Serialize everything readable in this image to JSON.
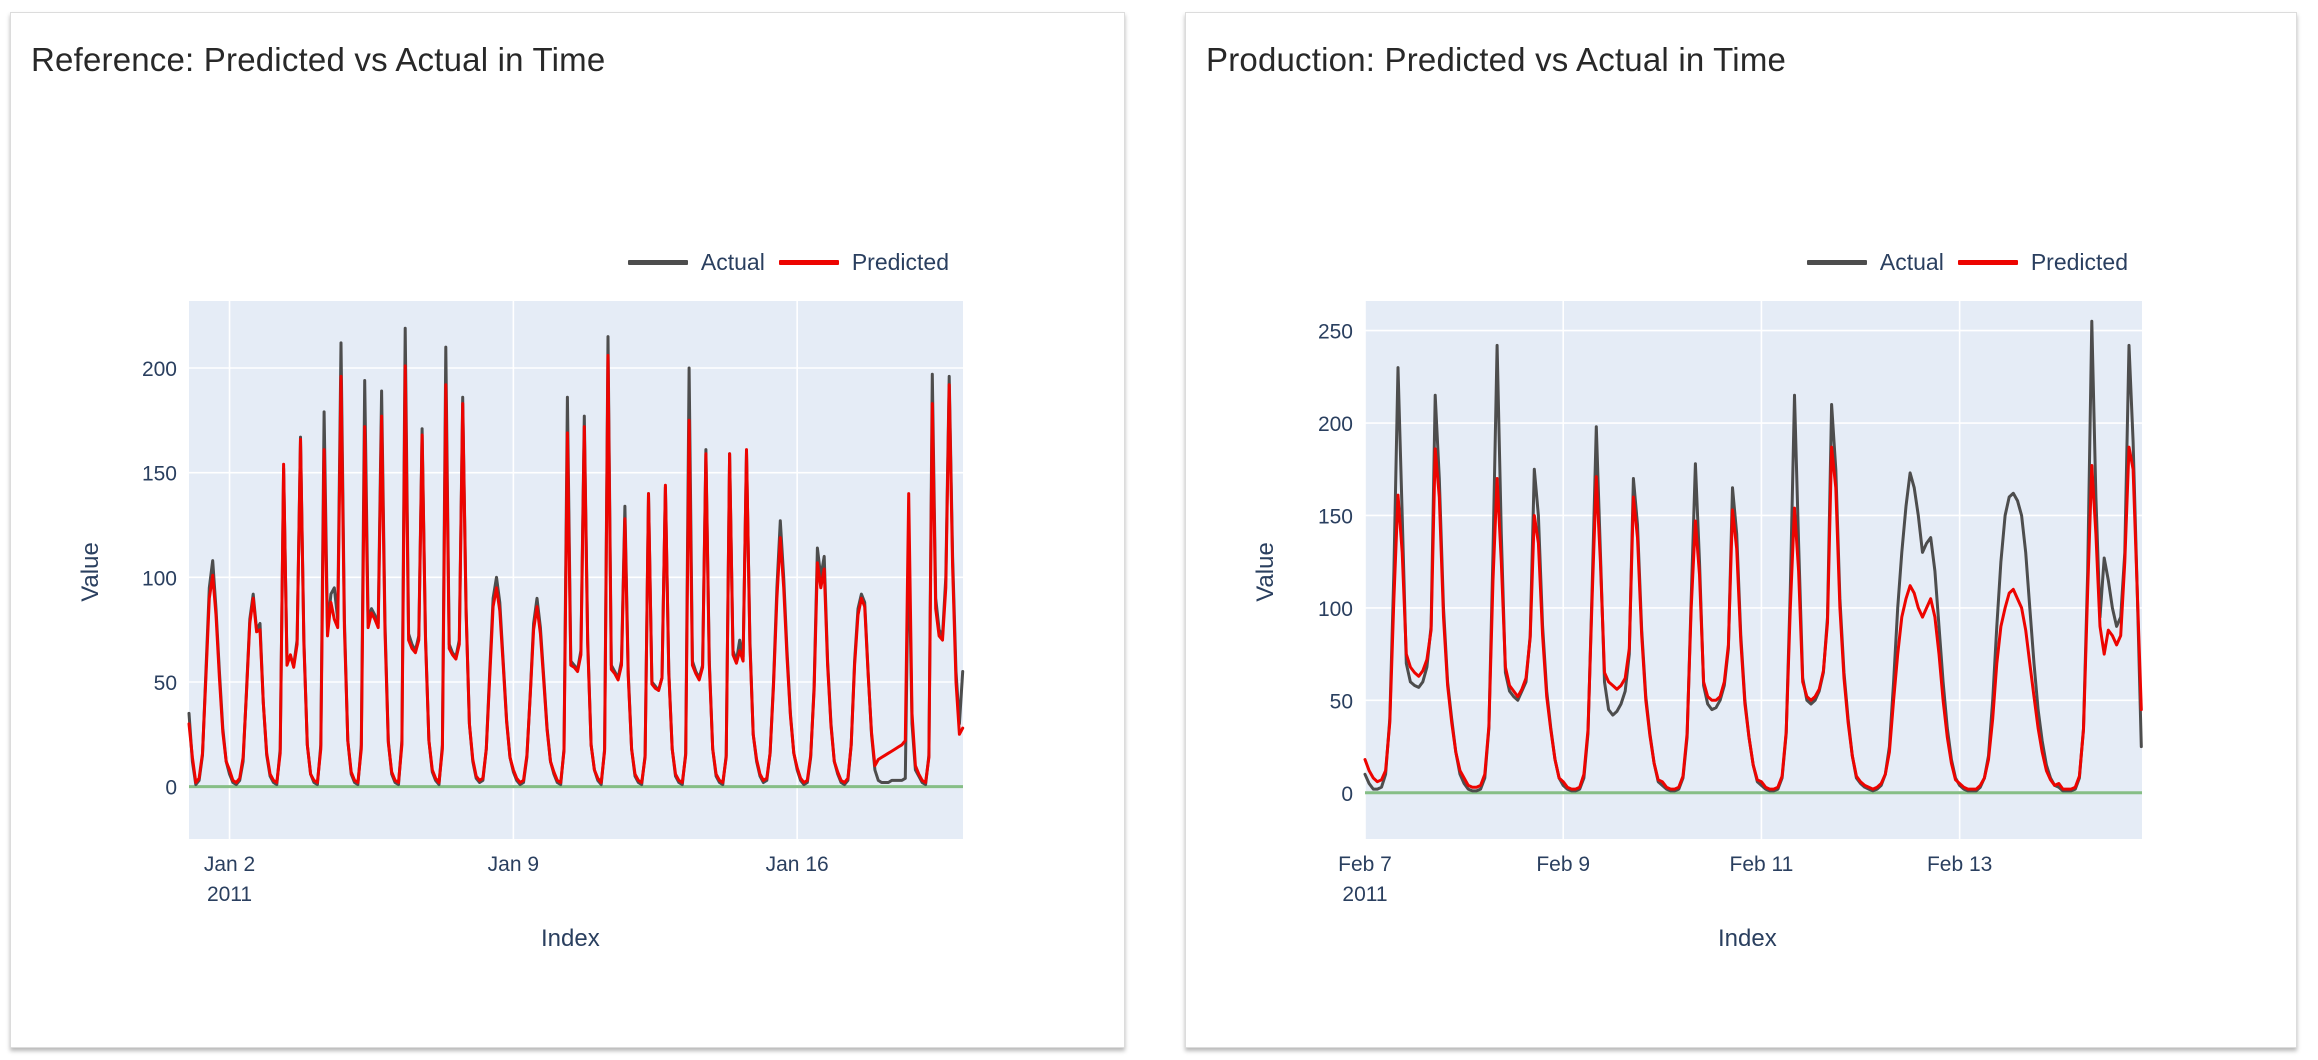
{
  "page": {
    "background": "#ffffff"
  },
  "legend_labels": {
    "actual": "Actual",
    "predicted": "Predicted"
  },
  "chart_data": [
    {
      "type": "line",
      "title": "Reference: Predicted vs Actual in Time",
      "xlabel": "Index",
      "ylabel": "Value",
      "x_unit": "days",
      "x_start": 0,
      "x_step_days": 0.0833333,
      "xlim": [
        0,
        19.09
      ],
      "ylim": [
        -25,
        232
      ],
      "yticks": [
        0,
        50,
        100,
        150,
        200
      ],
      "xticks": [
        {
          "pos": 1,
          "label": "Jan 2",
          "sublabel": "2011"
        },
        {
          "pos": 8,
          "label": "Jan 9"
        },
        {
          "pos": 15,
          "label": "Jan 16"
        }
      ],
      "grid": true,
      "plot_bg": "#e5ecf6",
      "grid_color": "#ffffff",
      "zeroline_color": "#86be86",
      "legend_position": "top-right",
      "series": [
        {
          "name": "Actual",
          "color": "#4d4d4d",
          "values": [
            35,
            12,
            1,
            3,
            15,
            55,
            95,
            108,
            85,
            55,
            28,
            12,
            6,
            2,
            1,
            3,
            12,
            45,
            80,
            92,
            75,
            78,
            40,
            15,
            5,
            2,
            1,
            18,
            152,
            60,
            62,
            58,
            70,
            167,
            70,
            20,
            6,
            2,
            1,
            20,
            179,
            75,
            92,
            95,
            80,
            212,
            80,
            22,
            6,
            2,
            1,
            20,
            194,
            80,
            85,
            82,
            78,
            189,
            78,
            22,
            6,
            2,
            1,
            22,
            219,
            73,
            68,
            65,
            72,
            171,
            72,
            22,
            7,
            3,
            1,
            20,
            210,
            68,
            64,
            62,
            70,
            186,
            85,
            30,
            12,
            4,
            2,
            3,
            18,
            55,
            90,
            100,
            88,
            60,
            32,
            14,
            7,
            3,
            1,
            2,
            14,
            45,
            78,
            90,
            76,
            52,
            28,
            12,
            6,
            2,
            1,
            18,
            186,
            60,
            58,
            56,
            65,
            177,
            70,
            20,
            8,
            3,
            1,
            18,
            215,
            58,
            55,
            52,
            60,
            134,
            55,
            18,
            5,
            2,
            1,
            15,
            140,
            50,
            48,
            46,
            52,
            143,
            55,
            18,
            5,
            2,
            1,
            16,
            200,
            60,
            55,
            52,
            58,
            161,
            60,
            18,
            5,
            2,
            1,
            15,
            159,
            65,
            60,
            70,
            62,
            160,
            70,
            25,
            12,
            5,
            2,
            3,
            16,
            50,
            95,
            127,
            100,
            65,
            35,
            16,
            8,
            3,
            1,
            2,
            14,
            48,
            114,
            100,
            110,
            60,
            30,
            12,
            6,
            2,
            1,
            3,
            20,
            60,
            85,
            92,
            88,
            55,
            25,
            8,
            3,
            2,
            2,
            2,
            3,
            3,
            3,
            3,
            4,
            120,
            30,
            8,
            5,
            2,
            1,
            15,
            197,
            90,
            75,
            72,
            100,
            196,
            110,
            55,
            30,
            55
          ]
        },
        {
          "name": "Predicted",
          "color": "#ed0400",
          "values": [
            30,
            14,
            2,
            4,
            16,
            52,
            90,
            101,
            82,
            52,
            26,
            12,
            8,
            3,
            2,
            4,
            14,
            44,
            78,
            90,
            74,
            75,
            40,
            16,
            6,
            3,
            2,
            16,
            154,
            58,
            63,
            57,
            68,
            166,
            68,
            20,
            6,
            3,
            2,
            18,
            161,
            72,
            88,
            80,
            76,
            196,
            76,
            22,
            7,
            3,
            2,
            18,
            172,
            76,
            83,
            80,
            76,
            177,
            74,
            21,
            7,
            3,
            2,
            20,
            201,
            70,
            66,
            64,
            70,
            168,
            70,
            22,
            8,
            4,
            2,
            18,
            192,
            66,
            63,
            61,
            68,
            183,
            83,
            30,
            13,
            5,
            3,
            4,
            18,
            52,
            86,
            95,
            84,
            58,
            31,
            14,
            8,
            4,
            2,
            3,
            15,
            44,
            75,
            86,
            73,
            50,
            27,
            12,
            7,
            3,
            2,
            17,
            169,
            58,
            57,
            55,
            63,
            172,
            68,
            20,
            8,
            4,
            2,
            17,
            206,
            56,
            54,
            51,
            58,
            128,
            53,
            18,
            6,
            3,
            2,
            14,
            140,
            49,
            47,
            46,
            52,
            144,
            54,
            18,
            6,
            3,
            2,
            15,
            175,
            58,
            54,
            51,
            57,
            159,
            58,
            18,
            6,
            3,
            2,
            14,
            159,
            63,
            59,
            65,
            60,
            161,
            68,
            25,
            13,
            6,
            3,
            4,
            16,
            48,
            90,
            119,
            95,
            62,
            34,
            16,
            9,
            4,
            2,
            3,
            15,
            46,
            107,
            95,
            104,
            58,
            29,
            12,
            7,
            3,
            2,
            4,
            20,
            58,
            82,
            90,
            86,
            54,
            26,
            10,
            13,
            14,
            15,
            16,
            17,
            18,
            19,
            20,
            22,
            140,
            35,
            10,
            6,
            3,
            2,
            14,
            183,
            85,
            72,
            70,
            95,
            192,
            105,
            50,
            25,
            28
          ]
        }
      ]
    },
    {
      "type": "line",
      "title": "Production: Predicted vs Actual in Time",
      "xlabel": "Index",
      "ylabel": "Value",
      "x_unit": "days",
      "x_start": 0,
      "x_step_days": 0.0416667,
      "xlim": [
        0,
        7.84
      ],
      "ylim": [
        -25,
        266
      ],
      "yticks": [
        0,
        50,
        100,
        150,
        200,
        250
      ],
      "xticks": [
        {
          "pos": 0,
          "label": "Feb 7",
          "sublabel": "2011"
        },
        {
          "pos": 2,
          "label": "Feb 9"
        },
        {
          "pos": 4,
          "label": "Feb 11"
        },
        {
          "pos": 6,
          "label": "Feb 13"
        }
      ],
      "grid": true,
      "plot_bg": "#e5ecf6",
      "grid_color": "#ffffff",
      "zeroline_color": "#86be86",
      "legend_position": "top-right",
      "series": [
        {
          "name": "Actual",
          "color": "#4d4d4d",
          "values": [
            10,
            5,
            2,
            2,
            3,
            10,
            40,
            120,
            230,
            150,
            70,
            60,
            58,
            57,
            60,
            68,
            90,
            215,
            170,
            100,
            60,
            40,
            22,
            10,
            5,
            2,
            1,
            1,
            2,
            8,
            35,
            130,
            242,
            140,
            65,
            55,
            52,
            50,
            55,
            60,
            85,
            175,
            150,
            90,
            55,
            35,
            18,
            8,
            4,
            2,
            1,
            1,
            2,
            8,
            32,
            110,
            198,
            130,
            60,
            45,
            42,
            44,
            48,
            55,
            75,
            170,
            145,
            88,
            52,
            32,
            16,
            6,
            4,
            2,
            1,
            1,
            2,
            8,
            30,
            105,
            178,
            125,
            58,
            48,
            45,
            46,
            50,
            58,
            78,
            165,
            140,
            85,
            50,
            30,
            15,
            6,
            4,
            2,
            1,
            1,
            2,
            8,
            32,
            110,
            215,
            135,
            62,
            50,
            48,
            50,
            55,
            65,
            95,
            210,
            175,
            105,
            65,
            40,
            20,
            8,
            5,
            3,
            2,
            1,
            2,
            4,
            10,
            25,
            60,
            100,
            130,
            155,
            173,
            165,
            150,
            130,
            135,
            138,
            120,
            90,
            60,
            35,
            18,
            8,
            4,
            2,
            1,
            1,
            1,
            3,
            8,
            20,
            50,
            90,
            125,
            150,
            160,
            162,
            158,
            150,
            130,
            100,
            70,
            45,
            28,
            15,
            8,
            4,
            3,
            1,
            1,
            1,
            2,
            8,
            35,
            120,
            255,
            160,
            95,
            127,
            115,
            100,
            90,
            95,
            130,
            242,
            190,
            110,
            25
          ]
        },
        {
          "name": "Predicted",
          "color": "#ed0400",
          "values": [
            18,
            12,
            8,
            6,
            7,
            12,
            38,
            105,
            161,
            130,
            75,
            68,
            65,
            63,
            66,
            72,
            88,
            186,
            160,
            95,
            58,
            38,
            22,
            12,
            8,
            4,
            3,
            3,
            4,
            10,
            36,
            115,
            170,
            125,
            68,
            58,
            55,
            52,
            56,
            62,
            84,
            150,
            135,
            85,
            52,
            34,
            18,
            8,
            6,
            3,
            2,
            2,
            3,
            10,
            34,
            105,
            171,
            125,
            65,
            60,
            58,
            56,
            58,
            62,
            78,
            160,
            138,
            85,
            50,
            31,
            16,
            7,
            6,
            3,
            2,
            2,
            3,
            9,
            32,
            100,
            147,
            118,
            60,
            52,
            50,
            50,
            52,
            60,
            80,
            153,
            132,
            82,
            48,
            30,
            15,
            7,
            6,
            3,
            2,
            2,
            3,
            9,
            33,
            100,
            154,
            120,
            60,
            52,
            50,
            52,
            56,
            66,
            92,
            187,
            165,
            100,
            62,
            38,
            20,
            9,
            6,
            4,
            3,
            2,
            3,
            5,
            10,
            22,
            50,
            75,
            95,
            105,
            112,
            108,
            100,
            95,
            100,
            105,
            95,
            75,
            50,
            30,
            16,
            7,
            5,
            3,
            2,
            2,
            2,
            4,
            8,
            18,
            40,
            70,
            90,
            100,
            108,
            110,
            105,
            100,
            88,
            70,
            52,
            35,
            22,
            12,
            7,
            4,
            5,
            2,
            2,
            2,
            3,
            9,
            34,
            110,
            177,
            140,
            90,
            75,
            88,
            85,
            80,
            85,
            125,
            187,
            175,
            110,
            45
          ]
        }
      ]
    }
  ]
}
